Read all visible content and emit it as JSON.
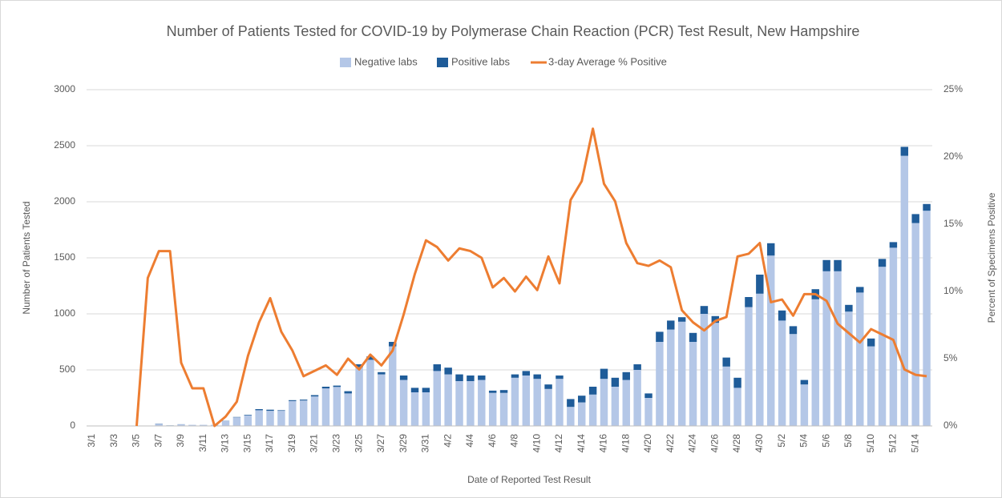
{
  "chart_data": {
    "type": "bar+line",
    "title": "Number of Patients Tested for COVID-19 by Polymerase Chain Reaction (PCR) Test Result, New Hampshire",
    "x_label": "Date of Reported Test Result",
    "y_label": "Number of Patients Tested",
    "y2_label": "Percent of Specimens Positive",
    "categories": [
      "3/1",
      null,
      "3/3",
      null,
      "3/5",
      null,
      "3/7",
      null,
      "3/9",
      null,
      "3/11",
      null,
      "3/13",
      null,
      "3/15",
      null,
      "3/17",
      null,
      "3/19",
      null,
      "3/21",
      null,
      "3/23",
      null,
      "3/25",
      null,
      "3/27",
      null,
      "3/29",
      null,
      "3/31",
      null,
      "4/2",
      null,
      "4/4",
      null,
      "4/6",
      null,
      "4/8",
      null,
      "4/10",
      null,
      "4/12",
      null,
      "4/14",
      null,
      "4/16",
      null,
      "4/18",
      null,
      "4/20",
      null,
      "4/22",
      null,
      "4/24",
      null,
      "4/26",
      null,
      "4/28",
      null,
      "4/30",
      null,
      "5/2",
      null,
      "5/4",
      null,
      "5/6",
      null,
      "5/8",
      null,
      "5/10",
      null,
      "5/12",
      null,
      "5/14",
      null
    ],
    "series": [
      {
        "name": "Negative labs",
        "type": "bar",
        "color": "#b4c7e7",
        "values": [
          0,
          0,
          0,
          0,
          0,
          3,
          18,
          4,
          14,
          10,
          10,
          10,
          43,
          77,
          95,
          140,
          135,
          135,
          222,
          227,
          263,
          335,
          348,
          290,
          525,
          590,
          460,
          710,
          410,
          300,
          300,
          490,
          460,
          400,
          400,
          410,
          295,
          295,
          430,
          450,
          420,
          330,
          420,
          170,
          210,
          280,
          420,
          350,
          410,
          500,
          250,
          750,
          860,
          930,
          750,
          1000,
          920,
          530,
          340,
          1060,
          1180,
          1520,
          940,
          820,
          370,
          1130,
          1380,
          1380,
          1020,
          1190,
          710,
          1420,
          1590,
          2410,
          1810,
          1920
        ]
      },
      {
        "name": "Positive labs",
        "type": "bar",
        "color": "#1f5c99",
        "values": [
          0,
          0,
          0,
          0,
          0,
          0,
          2,
          1,
          1,
          0,
          0,
          0,
          2,
          3,
          5,
          10,
          10,
          5,
          8,
          8,
          12,
          15,
          12,
          20,
          25,
          30,
          20,
          40,
          40,
          40,
          40,
          60,
          60,
          60,
          50,
          40,
          20,
          25,
          30,
          40,
          40,
          40,
          30,
          70,
          60,
          70,
          90,
          80,
          70,
          50,
          40,
          90,
          80,
          40,
          80,
          70,
          60,
          80,
          90,
          90,
          170,
          110,
          90,
          70,
          40,
          90,
          100,
          100,
          60,
          50,
          70,
          70,
          50,
          80,
          80,
          60
        ]
      },
      {
        "name": "3-day Average % Positive",
        "type": "line",
        "axis": "y2",
        "color": "#ed7d31",
        "values": [
          null,
          null,
          null,
          null,
          0,
          11,
          13,
          13,
          4.7,
          2.8,
          2.8,
          0,
          0.7,
          1.8,
          5.2,
          7.7,
          9.5,
          7,
          5.6,
          3.7,
          4.1,
          4.5,
          3.8,
          5,
          4.2,
          5.3,
          4.5,
          5.6,
          8.3,
          11.3,
          13.8,
          13.3,
          12.3,
          13.2,
          13,
          12.5,
          10.3,
          11,
          10,
          11.1,
          10.1,
          12.6,
          10.6,
          16.8,
          18.2,
          22.1,
          18,
          16.7,
          13.6,
          12.1,
          11.9,
          12.3,
          11.8,
          8.6,
          7.7,
          7.1,
          7.8,
          8.1,
          12.6,
          12.8,
          13.6,
          9.2,
          9.4,
          8.2,
          9.8,
          9.8,
          9.3,
          7.6,
          6.9,
          6.2,
          7.2,
          6.8,
          6.4,
          4.2,
          3.8,
          3.7
        ]
      }
    ],
    "ylim": [
      0,
      3000
    ],
    "yticks": [
      0,
      500,
      1000,
      1500,
      2000,
      2500,
      3000
    ],
    "y2lim": [
      0,
      25
    ],
    "y2ticks": [
      {
        "value": 0,
        "label": "0%"
      },
      {
        "value": 5,
        "label": "5%"
      },
      {
        "value": 10,
        "label": "10%"
      },
      {
        "value": 15,
        "label": "15%"
      },
      {
        "value": 20,
        "label": "20%"
      },
      {
        "value": 25,
        "label": "25%"
      }
    ],
    "grid": true,
    "legend": "top"
  }
}
